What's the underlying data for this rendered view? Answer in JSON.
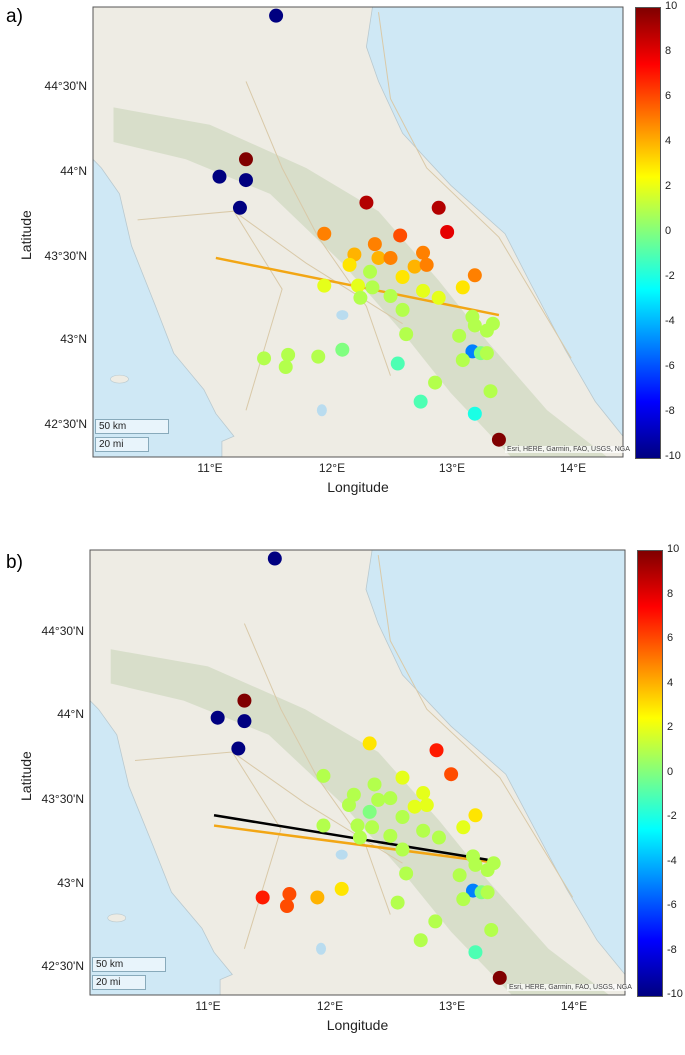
{
  "panels": [
    {
      "letter": "a)",
      "xlabel": "Longitude",
      "ylabel": "Latitude",
      "lon_ticks": [
        "11°E",
        "12°E",
        "13°E",
        "14°E"
      ],
      "lat_ticks": [
        "44°30'N",
        "44°N",
        "43°30'N",
        "43°N",
        "42°30'N"
      ],
      "colorbar_ticks": [
        "10",
        "8",
        "6",
        "4",
        "2",
        "0",
        "-2",
        "-4",
        "-6",
        "-8",
        "-10"
      ],
      "scale_km": "50 km",
      "scale_mi": "20 mi",
      "attribution": "Esri, HERE, Garmin, FAO, USGS, NGA",
      "points": [
        {
          "lon": 11.55,
          "lat": 44.88,
          "v": -10
        },
        {
          "lon": 11.3,
          "lat": 44.05,
          "v": 10
        },
        {
          "lon": 11.08,
          "lat": 43.95,
          "v": -10
        },
        {
          "lon": 11.3,
          "lat": 43.93,
          "v": -10
        },
        {
          "lon": 11.25,
          "lat": 43.77,
          "v": -10
        },
        {
          "lon": 12.3,
          "lat": 43.8,
          "v": 9
        },
        {
          "lon": 12.9,
          "lat": 43.77,
          "v": 9
        },
        {
          "lon": 12.97,
          "lat": 43.63,
          "v": 8
        },
        {
          "lon": 11.95,
          "lat": 43.62,
          "v": 5
        },
        {
          "lon": 12.37,
          "lat": 43.56,
          "v": 5
        },
        {
          "lon": 12.58,
          "lat": 43.61,
          "v": 6
        },
        {
          "lon": 12.2,
          "lat": 43.5,
          "v": 4
        },
        {
          "lon": 12.4,
          "lat": 43.48,
          "v": 4
        },
        {
          "lon": 12.5,
          "lat": 43.48,
          "v": 5
        },
        {
          "lon": 12.77,
          "lat": 43.51,
          "v": 5
        },
        {
          "lon": 12.7,
          "lat": 43.43,
          "v": 4
        },
        {
          "lon": 12.8,
          "lat": 43.44,
          "v": 5
        },
        {
          "lon": 12.16,
          "lat": 43.44,
          "v": 3
        },
        {
          "lon": 12.33,
          "lat": 43.4,
          "v": 1
        },
        {
          "lon": 12.6,
          "lat": 43.37,
          "v": 3
        },
        {
          "lon": 13.2,
          "lat": 43.38,
          "v": 5
        },
        {
          "lon": 11.95,
          "lat": 43.32,
          "v": 2
        },
        {
          "lon": 12.23,
          "lat": 43.32,
          "v": 2
        },
        {
          "lon": 12.35,
          "lat": 43.31,
          "v": 1
        },
        {
          "lon": 12.77,
          "lat": 43.29,
          "v": 2
        },
        {
          "lon": 13.1,
          "lat": 43.31,
          "v": 3
        },
        {
          "lon": 12.25,
          "lat": 43.25,
          "v": 1
        },
        {
          "lon": 12.5,
          "lat": 43.26,
          "v": 1
        },
        {
          "lon": 12.9,
          "lat": 43.25,
          "v": 2
        },
        {
          "lon": 12.6,
          "lat": 43.18,
          "v": 1
        },
        {
          "lon": 13.18,
          "lat": 43.14,
          "v": 1
        },
        {
          "lon": 13.35,
          "lat": 43.1,
          "v": 1
        },
        {
          "lon": 13.2,
          "lat": 43.09,
          "v": 1
        },
        {
          "lon": 13.3,
          "lat": 43.06,
          "v": 1
        },
        {
          "lon": 12.63,
          "lat": 43.04,
          "v": 1
        },
        {
          "lon": 13.07,
          "lat": 43.03,
          "v": 1
        },
        {
          "lon": 13.18,
          "lat": 42.94,
          "v": -5
        },
        {
          "lon": 13.25,
          "lat": 42.93,
          "v": 0
        },
        {
          "lon": 13.3,
          "lat": 42.93,
          "v": 1
        },
        {
          "lon": 12.1,
          "lat": 42.95,
          "v": 0
        },
        {
          "lon": 11.45,
          "lat": 42.9,
          "v": 1
        },
        {
          "lon": 11.65,
          "lat": 42.92,
          "v": 1
        },
        {
          "lon": 11.63,
          "lat": 42.85,
          "v": 1
        },
        {
          "lon": 11.9,
          "lat": 42.91,
          "v": 1
        },
        {
          "lon": 13.1,
          "lat": 42.89,
          "v": 1
        },
        {
          "lon": 12.56,
          "lat": 42.87,
          "v": -1
        },
        {
          "lon": 12.87,
          "lat": 42.76,
          "v": 1
        },
        {
          "lon": 13.33,
          "lat": 42.71,
          "v": 1
        },
        {
          "lon": 12.75,
          "lat": 42.65,
          "v": -1
        },
        {
          "lon": 13.2,
          "lat": 42.58,
          "v": -2
        },
        {
          "lon": 13.4,
          "lat": 42.43,
          "v": 10
        }
      ],
      "lines": [
        {
          "color": "#f2a614",
          "from": [
            11.05,
            43.48
          ],
          "to": [
            13.4,
            43.15
          ]
        }
      ]
    },
    {
      "letter": "b)",
      "xlabel": "Longitude",
      "ylabel": "Latitude",
      "lon_ticks": [
        "11°E",
        "12°E",
        "13°E",
        "14°E"
      ],
      "lat_ticks": [
        "44°30'N",
        "44°N",
        "43°30'N",
        "43°N",
        "42°30'N"
      ],
      "colorbar_ticks": [
        "10",
        "8",
        "6",
        "4",
        "2",
        "0",
        "-2",
        "-4",
        "-6",
        "-8",
        "-10"
      ],
      "scale_km": "50 km",
      "scale_mi": "20 mi",
      "attribution": "Esri, HERE, Garmin, FAO, USGS, NGA",
      "points": [
        {
          "lon": 11.55,
          "lat": 44.88,
          "v": -10
        },
        {
          "lon": 11.3,
          "lat": 44.05,
          "v": 10
        },
        {
          "lon": 11.08,
          "lat": 43.95,
          "v": -10
        },
        {
          "lon": 11.3,
          "lat": 43.93,
          "v": -10
        },
        {
          "lon": 11.25,
          "lat": 43.77,
          "v": -10
        },
        {
          "lon": 12.33,
          "lat": 43.8,
          "v": 3
        },
        {
          "lon": 12.88,
          "lat": 43.76,
          "v": 7
        },
        {
          "lon": 13.0,
          "lat": 43.62,
          "v": 6
        },
        {
          "lon": 11.95,
          "lat": 43.61,
          "v": 1
        },
        {
          "lon": 12.37,
          "lat": 43.56,
          "v": 1
        },
        {
          "lon": 12.6,
          "lat": 43.6,
          "v": 2
        },
        {
          "lon": 12.2,
          "lat": 43.5,
          "v": 1
        },
        {
          "lon": 12.4,
          "lat": 43.47,
          "v": 1
        },
        {
          "lon": 12.5,
          "lat": 43.48,
          "v": 1
        },
        {
          "lon": 12.77,
          "lat": 43.51,
          "v": 2
        },
        {
          "lon": 12.7,
          "lat": 43.43,
          "v": 2
        },
        {
          "lon": 12.8,
          "lat": 43.44,
          "v": 2
        },
        {
          "lon": 12.16,
          "lat": 43.44,
          "v": 1
        },
        {
          "lon": 12.33,
          "lat": 43.4,
          "v": 0
        },
        {
          "lon": 12.6,
          "lat": 43.37,
          "v": 1
        },
        {
          "lon": 13.2,
          "lat": 43.38,
          "v": 3
        },
        {
          "lon": 11.95,
          "lat": 43.32,
          "v": 1
        },
        {
          "lon": 12.23,
          "lat": 43.32,
          "v": 1
        },
        {
          "lon": 12.35,
          "lat": 43.31,
          "v": 1
        },
        {
          "lon": 12.77,
          "lat": 43.29,
          "v": 1
        },
        {
          "lon": 13.1,
          "lat": 43.31,
          "v": 2
        },
        {
          "lon": 12.25,
          "lat": 43.25,
          "v": 1
        },
        {
          "lon": 12.5,
          "lat": 43.26,
          "v": 1
        },
        {
          "lon": 12.9,
          "lat": 43.25,
          "v": 1
        },
        {
          "lon": 12.6,
          "lat": 43.18,
          "v": 1
        },
        {
          "lon": 13.18,
          "lat": 43.14,
          "v": 1
        },
        {
          "lon": 13.35,
          "lat": 43.1,
          "v": 1
        },
        {
          "lon": 13.2,
          "lat": 43.09,
          "v": 1
        },
        {
          "lon": 13.3,
          "lat": 43.06,
          "v": 1
        },
        {
          "lon": 12.63,
          "lat": 43.04,
          "v": 1
        },
        {
          "lon": 13.07,
          "lat": 43.03,
          "v": 1
        },
        {
          "lon": 13.18,
          "lat": 42.94,
          "v": -5
        },
        {
          "lon": 13.25,
          "lat": 42.93,
          "v": 0
        },
        {
          "lon": 13.3,
          "lat": 42.93,
          "v": 1
        },
        {
          "lon": 12.1,
          "lat": 42.95,
          "v": 3
        },
        {
          "lon": 11.45,
          "lat": 42.9,
          "v": 7
        },
        {
          "lon": 11.67,
          "lat": 42.92,
          "v": 6
        },
        {
          "lon": 11.65,
          "lat": 42.85,
          "v": 6
        },
        {
          "lon": 11.9,
          "lat": 42.9,
          "v": 4
        },
        {
          "lon": 13.1,
          "lat": 42.89,
          "v": 1
        },
        {
          "lon": 12.56,
          "lat": 42.87,
          "v": 1
        },
        {
          "lon": 12.87,
          "lat": 42.76,
          "v": 1
        },
        {
          "lon": 13.33,
          "lat": 42.71,
          "v": 1
        },
        {
          "lon": 12.75,
          "lat": 42.65,
          "v": 1
        },
        {
          "lon": 13.2,
          "lat": 42.58,
          "v": -1
        },
        {
          "lon": 13.4,
          "lat": 42.43,
          "v": 10
        }
      ],
      "lines": [
        {
          "color": "#f2a614",
          "from": [
            11.05,
            43.32
          ],
          "to": [
            13.4,
            43.1
          ]
        },
        {
          "color": "#000000",
          "from": [
            11.05,
            43.38
          ],
          "to": [
            13.3,
            43.12
          ]
        }
      ]
    }
  ]
}
